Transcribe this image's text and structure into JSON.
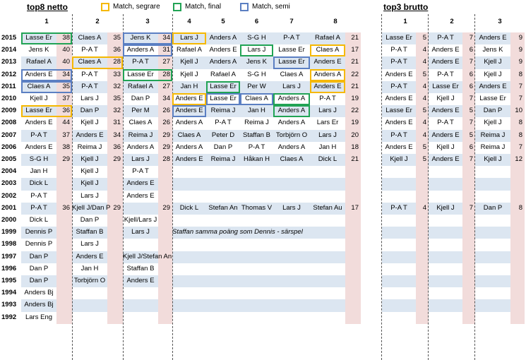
{
  "colors": {
    "segrare": "#f5b800",
    "final": "#21a355",
    "semi": "#5b7fc2",
    "stripe": "#dce6f1",
    "pink": "#f2dcdb"
  },
  "titles": {
    "left": "top8 netto",
    "right": "top3 brutto"
  },
  "legend": [
    {
      "label": "Match, segrare",
      "color": "segrare"
    },
    {
      "label": "Match, final",
      "color": "final"
    },
    {
      "label": "Match, semi",
      "color": "semi"
    }
  ],
  "headers": {
    "left": [
      "1",
      "2",
      "3",
      "4",
      "5",
      "6",
      "7",
      "8"
    ],
    "right": [
      "1",
      "2",
      "3"
    ]
  },
  "years": [
    "2015",
    "2014",
    "2013",
    "2012",
    "2011",
    "2010",
    "2009",
    "2008",
    "2007",
    "2006",
    "2005",
    "2004",
    "2003",
    "2002",
    "2001",
    "2000",
    "1999",
    "1998",
    "1997",
    "1996",
    "1995",
    "1994",
    "1993",
    "1992"
  ],
  "netto": [
    [
      [
        "Lasse Er",
        "38"
      ],
      [
        "Claes A",
        "35"
      ],
      [
        "Jens K",
        "34"
      ],
      [
        "Lars J",
        ""
      ],
      [
        "Anders A",
        ""
      ],
      [
        "S-G H",
        ""
      ],
      [
        "P-A T",
        ""
      ],
      [
        "Rafael A",
        "21"
      ]
    ],
    [
      [
        "Jens K",
        "40"
      ],
      [
        "P-A T",
        "36"
      ],
      [
        "Anders A",
        "31"
      ],
      [
        "Rafael A",
        ""
      ],
      [
        "Anders E",
        ""
      ],
      [
        "Lars J",
        ""
      ],
      [
        "Lasse Er",
        ""
      ],
      [
        "Claes A",
        "17"
      ]
    ],
    [
      [
        "Rafael A",
        "40"
      ],
      [
        "Claes A",
        "28"
      ],
      [
        "P-A T",
        "27"
      ],
      [
        "Kjell J",
        ""
      ],
      [
        "Anders A",
        ""
      ],
      [
        "Jens K",
        ""
      ],
      [
        "Lasse Er",
        ""
      ],
      [
        "Anders E",
        "21"
      ]
    ],
    [
      [
        "Anders E",
        "34"
      ],
      [
        "P-A T",
        "33"
      ],
      [
        "Lasse Er",
        "28"
      ],
      [
        "Kjell J",
        ""
      ],
      [
        "Rafael A",
        ""
      ],
      [
        "S-G H",
        ""
      ],
      [
        "Claes A",
        ""
      ],
      [
        "Anders A",
        "22"
      ]
    ],
    [
      [
        "Claes A",
        "35"
      ],
      [
        "P-A T",
        "32"
      ],
      [
        "Rafael A",
        "27"
      ],
      [
        "Jan H",
        ""
      ],
      [
        "Lasse Er",
        ""
      ],
      [
        "Per W",
        ""
      ],
      [
        "Lars J",
        ""
      ],
      [
        "Anders E",
        "21"
      ]
    ],
    [
      [
        "Kjell J",
        "37"
      ],
      [
        "Lars J",
        "35"
      ],
      [
        "Dan P",
        "34"
      ],
      [
        "Anders E",
        ""
      ],
      [
        "Lasse Er",
        ""
      ],
      [
        "Claes A",
        ""
      ],
      [
        "Anders A",
        ""
      ],
      [
        "P-A T",
        "19"
      ]
    ],
    [
      [
        "Lasse Er",
        "36"
      ],
      [
        "Dan P",
        "32"
      ],
      [
        "Per M",
        "26"
      ],
      [
        "Anders E",
        ""
      ],
      [
        "Reima J",
        ""
      ],
      [
        "Jan H",
        ""
      ],
      [
        "Anders A",
        ""
      ],
      [
        "Lars J",
        "22"
      ]
    ],
    [
      [
        "Anders E",
        "44"
      ],
      [
        "Kjell J",
        "31"
      ],
      [
        "Claes A",
        "26"
      ],
      [
        "Anders A",
        ""
      ],
      [
        "P-A T",
        ""
      ],
      [
        "Reima J",
        ""
      ],
      [
        "Anders A",
        ""
      ],
      [
        "Lars Er",
        "19"
      ]
    ],
    [
      [
        "P-A T",
        "37"
      ],
      [
        "Anders E",
        "34"
      ],
      [
        "Reima J",
        "29"
      ],
      [
        "Claes A",
        ""
      ],
      [
        "Peter D",
        ""
      ],
      [
        "Staffan B",
        ""
      ],
      [
        "Torbjörn O",
        ""
      ],
      [
        "Lars J",
        "20"
      ]
    ],
    [
      [
        "Anders E",
        "38"
      ],
      [
        "Reima J",
        "36"
      ],
      [
        "Anders A",
        "29"
      ],
      [
        "Anders A",
        ""
      ],
      [
        "Dan P",
        ""
      ],
      [
        "P-A T",
        ""
      ],
      [
        "Anders A",
        ""
      ],
      [
        "Jan H",
        "18"
      ]
    ],
    [
      [
        "S-G H",
        "29"
      ],
      [
        "Kjell J",
        "29"
      ],
      [
        "Lars J",
        "28"
      ],
      [
        "Anders E",
        ""
      ],
      [
        "Reima J",
        ""
      ],
      [
        "Håkan H",
        ""
      ],
      [
        "Claes A",
        ""
      ],
      [
        "Dick L",
        "21"
      ]
    ],
    [
      [
        "Jan H",
        ""
      ],
      [
        "Kjell J",
        ""
      ],
      [
        "P-A T",
        ""
      ],
      [
        "",
        ""
      ],
      [
        "",
        ""
      ],
      [
        "",
        ""
      ],
      [
        "",
        ""
      ],
      [
        "",
        ""
      ]
    ],
    [
      [
        "Dick L",
        ""
      ],
      [
        "Kjell J",
        ""
      ],
      [
        "Anders E",
        ""
      ],
      [
        "",
        ""
      ],
      [
        "",
        ""
      ],
      [
        "",
        ""
      ],
      [
        "",
        ""
      ],
      [
        "",
        ""
      ]
    ],
    [
      [
        "P-A T",
        ""
      ],
      [
        "Lars J",
        ""
      ],
      [
        "Anders E",
        ""
      ],
      [
        "",
        ""
      ],
      [
        "",
        ""
      ],
      [
        "",
        ""
      ],
      [
        "",
        ""
      ],
      [
        "",
        ""
      ]
    ],
    [
      [
        "P-A T",
        "36"
      ],
      [
        "Kjell J/Dan P",
        "29"
      ],
      [
        "",
        "29"
      ],
      [
        "Dick L",
        ""
      ],
      [
        "Stefan An",
        ""
      ],
      [
        "Thomas V",
        ""
      ],
      [
        "Lars J",
        ""
      ],
      [
        "Stefan Au",
        "17"
      ]
    ],
    [
      [
        "Dick L",
        ""
      ],
      [
        "Dan P",
        ""
      ],
      [
        "Kjell/Lars J",
        ""
      ],
      [
        "",
        ""
      ],
      [
        "",
        ""
      ],
      [
        "",
        ""
      ],
      [
        "",
        ""
      ],
      [
        "",
        ""
      ]
    ],
    [
      [
        "Dennis P",
        ""
      ],
      [
        "Staffan B",
        ""
      ],
      [
        "Lars J",
        ""
      ],
      [
        "",
        ""
      ],
      [
        "",
        ""
      ],
      [
        "",
        ""
      ],
      [
        "",
        ""
      ],
      [
        "",
        ""
      ]
    ],
    [
      [
        "Dennis P",
        ""
      ],
      [
        "Lars J",
        ""
      ],
      [
        "",
        ""
      ],
      [
        "",
        ""
      ],
      [
        "",
        ""
      ],
      [
        "",
        ""
      ],
      [
        "",
        ""
      ],
      [
        "",
        ""
      ]
    ],
    [
      [
        "Dan P",
        ""
      ],
      [
        "Anders E",
        ""
      ],
      [
        "Kjell J/Stefan An",
        ""
      ],
      [
        "",
        ""
      ],
      [
        "",
        ""
      ],
      [
        "",
        ""
      ],
      [
        "",
        ""
      ],
      [
        "",
        ""
      ]
    ],
    [
      [
        "Dan P",
        ""
      ],
      [
        "Jan H",
        ""
      ],
      [
        "Staffan B",
        ""
      ],
      [
        "",
        ""
      ],
      [
        "",
        ""
      ],
      [
        "",
        ""
      ],
      [
        "",
        ""
      ],
      [
        "",
        ""
      ]
    ],
    [
      [
        "Dan P",
        ""
      ],
      [
        "Torbjörn O",
        ""
      ],
      [
        "Anders E",
        ""
      ],
      [
        "",
        ""
      ],
      [
        "",
        ""
      ],
      [
        "",
        ""
      ],
      [
        "",
        ""
      ],
      [
        "",
        ""
      ]
    ],
    [
      [
        "Anders Bj",
        ""
      ],
      [
        "",
        ""
      ],
      [
        "",
        ""
      ],
      [
        "",
        ""
      ],
      [
        "",
        ""
      ],
      [
        "",
        ""
      ],
      [
        "",
        ""
      ],
      [
        "",
        ""
      ]
    ],
    [
      [
        "Anders Bj",
        ""
      ],
      [
        "",
        ""
      ],
      [
        "",
        ""
      ],
      [
        "",
        ""
      ],
      [
        "",
        ""
      ],
      [
        "",
        ""
      ],
      [
        "",
        ""
      ],
      [
        "",
        ""
      ]
    ],
    [
      [
        "Lars Eng",
        ""
      ],
      [
        "",
        ""
      ],
      [
        "",
        ""
      ],
      [
        "",
        ""
      ],
      [
        "",
        ""
      ],
      [
        "",
        ""
      ],
      [
        "",
        ""
      ],
      [
        "",
        ""
      ]
    ]
  ],
  "note_1999": "Staffan samma poäng som Dennis - särspel",
  "brutto": [
    [
      [
        "Lasse Er",
        "5"
      ],
      [
        "P-A T",
        "7"
      ],
      [
        "Anders E",
        "9"
      ]
    ],
    [
      [
        "P-A T",
        "4"
      ],
      [
        "Anders E",
        "6"
      ],
      [
        "Jens K",
        "9"
      ]
    ],
    [
      [
        "P-A T",
        "4"
      ],
      [
        "Anders E",
        "7"
      ],
      [
        "Kjell J",
        "9"
      ]
    ],
    [
      [
        "Anders E",
        "5"
      ],
      [
        "P-A T",
        "6"
      ],
      [
        "Kjell J",
        "8"
      ]
    ],
    [
      [
        "P-A T",
        "4"
      ],
      [
        "Lasse Er",
        "6"
      ],
      [
        "Anders E",
        "7"
      ]
    ],
    [
      [
        "Anders E",
        "4"
      ],
      [
        "Kjell J",
        "7"
      ],
      [
        "Lasse Er",
        "7"
      ]
    ],
    [
      [
        "Lasse Er",
        "5"
      ],
      [
        "Anders E",
        "5"
      ],
      [
        "Dan P",
        "10"
      ]
    ],
    [
      [
        "Anders E",
        "4"
      ],
      [
        "P-A T",
        "7"
      ],
      [
        "Kjell J",
        "8"
      ]
    ],
    [
      [
        "P-A T",
        "4"
      ],
      [
        "Anders E",
        "5"
      ],
      [
        "Reima J",
        "8"
      ]
    ],
    [
      [
        "Anders E",
        "5"
      ],
      [
        "Kjell J",
        "6"
      ],
      [
        "Reima J",
        "7"
      ]
    ],
    [
      [
        "Kjell J",
        "5"
      ],
      [
        "Anders E",
        "7"
      ],
      [
        "Kjell J",
        "12"
      ]
    ],
    [
      [
        "",
        ""
      ],
      [
        "",
        ""
      ],
      [
        "",
        ""
      ]
    ],
    [
      [
        "",
        ""
      ],
      [
        "",
        ""
      ],
      [
        "",
        ""
      ]
    ],
    [
      [
        "",
        ""
      ],
      [
        "",
        ""
      ],
      [
        "",
        ""
      ]
    ],
    [
      [
        "P-A T",
        "4"
      ],
      [
        "Kjell J",
        "7"
      ],
      [
        "Dan P",
        "8"
      ]
    ],
    [
      [
        "",
        ""
      ],
      [
        "",
        ""
      ],
      [
        "",
        ""
      ]
    ],
    [
      [
        "",
        ""
      ],
      [
        "",
        ""
      ],
      [
        "",
        ""
      ]
    ],
    [
      [
        "",
        ""
      ],
      [
        "",
        ""
      ],
      [
        "",
        ""
      ]
    ],
    [
      [
        "",
        ""
      ],
      [
        "",
        ""
      ],
      [
        "",
        ""
      ]
    ],
    [
      [
        "",
        ""
      ],
      [
        "",
        ""
      ],
      [
        "",
        ""
      ]
    ],
    [
      [
        "",
        ""
      ],
      [
        "",
        ""
      ],
      [
        "",
        ""
      ]
    ],
    [
      [
        "",
        ""
      ],
      [
        "",
        ""
      ],
      [
        "",
        ""
      ]
    ],
    [
      [
        "",
        ""
      ],
      [
        "",
        ""
      ],
      [
        "",
        ""
      ]
    ],
    [
      [
        "",
        ""
      ],
      [
        "",
        ""
      ],
      [
        "",
        ""
      ]
    ]
  ],
  "highlights": [
    {
      "row": 0,
      "col": 0,
      "type": "final",
      "wide": true
    },
    {
      "row": 0,
      "col": 2,
      "type": "semi",
      "wide": true
    },
    {
      "row": 0,
      "col": 3,
      "type": "segrare"
    },
    {
      "row": 1,
      "col": 2,
      "type": "semi",
      "wide": true
    },
    {
      "row": 1,
      "col": 5,
      "type": "final"
    },
    {
      "row": 1,
      "col": 7,
      "type": "segrare"
    },
    {
      "row": 2,
      "col": 1,
      "type": "segrare",
      "wide": true
    },
    {
      "row": 2,
      "col": 6,
      "type": "semi"
    },
    {
      "row": 3,
      "col": 0,
      "type": "semi",
      "wide": true
    },
    {
      "row": 3,
      "col": 2,
      "type": "final",
      "wide": true
    },
    {
      "row": 3,
      "col": 7,
      "type": "segrare"
    },
    {
      "row": 4,
      "col": 0,
      "type": "semi",
      "wide": true
    },
    {
      "row": 4,
      "col": 4,
      "type": "final"
    },
    {
      "row": 4,
      "col": 7,
      "type": "segrare"
    },
    {
      "row": 5,
      "col": 3,
      "type": "segrare"
    },
    {
      "row": 5,
      "col": 4,
      "type": "semi"
    },
    {
      "row": 5,
      "col": 5,
      "type": "semi"
    },
    {
      "row": 5,
      "col": 6,
      "type": "final"
    },
    {
      "row": 6,
      "col": 0,
      "type": "segrare",
      "wide": true
    },
    {
      "row": 6,
      "col": 3,
      "type": "semi"
    },
    {
      "row": 6,
      "col": 6,
      "type": "final"
    }
  ]
}
